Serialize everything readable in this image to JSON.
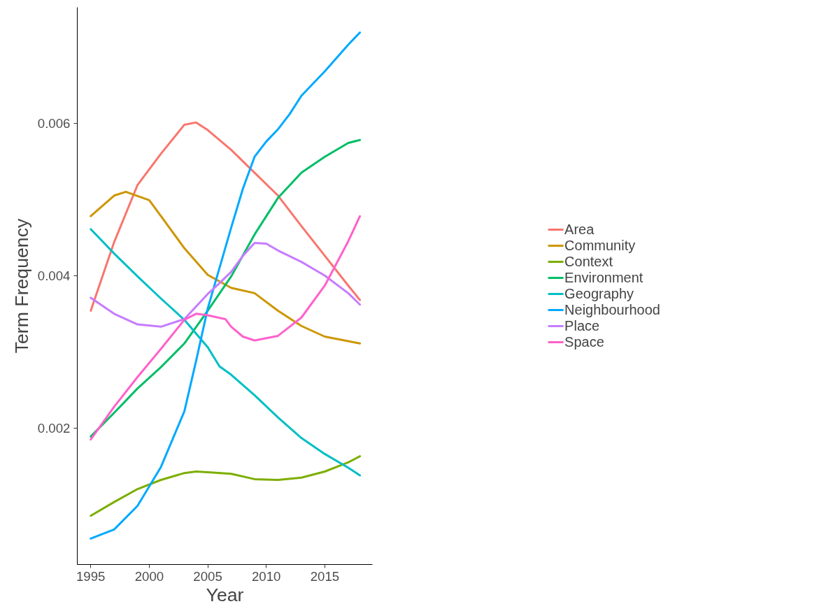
{
  "chart_data": {
    "type": "line",
    "xlabel": "Year",
    "ylabel": "Term Frequency",
    "xlim": [
      1993.85,
      2019.07
    ],
    "ylim": [
      0.00021,
      0.00752
    ],
    "xticks": [
      1995,
      2000,
      2005,
      2010,
      2015
    ],
    "yticks": [
      0.002,
      0.004,
      0.006
    ],
    "grid": false,
    "legend": "right",
    "marker": "none",
    "line_style": "solid",
    "series": [
      {
        "name": "Area",
        "color": "#f8766d",
        "x": [
          1995,
          1997,
          1999,
          2001,
          2003,
          2004,
          2005,
          2007,
          2009,
          2011,
          2013,
          2015,
          2017,
          2018
        ],
        "values": [
          0.00354,
          0.00444,
          0.00519,
          0.0056,
          0.00598,
          0.00601,
          0.00591,
          0.00565,
          0.00535,
          0.00505,
          0.00465,
          0.00426,
          0.00387,
          0.00368
        ]
      },
      {
        "name": "Community",
        "color": "#cd9600",
        "x": [
          1995,
          1997,
          1998,
          2000,
          2001,
          2003,
          2005,
          2007,
          2009,
          2011,
          2013,
          2015,
          2017,
          2018
        ],
        "values": [
          0.00478,
          0.00505,
          0.0051,
          0.00499,
          0.00478,
          0.00436,
          0.00401,
          0.00384,
          0.00377,
          0.00354,
          0.00334,
          0.0032,
          0.00314,
          0.00311
        ]
      },
      {
        "name": "Context",
        "color": "#7cae00",
        "x": [
          1995,
          1997,
          1999,
          2001,
          2003,
          2004,
          2005,
          2007,
          2009,
          2011,
          2013,
          2015,
          2017,
          2018
        ],
        "values": [
          0.00085,
          0.00103,
          0.0012,
          0.00132,
          0.00141,
          0.00143,
          0.00142,
          0.0014,
          0.00133,
          0.00132,
          0.00135,
          0.00143,
          0.00155,
          0.00163
        ]
      },
      {
        "name": "Environment",
        "color": "#00be67",
        "x": [
          1995,
          1997,
          1999,
          2001,
          2003,
          2005,
          2007,
          2009,
          2011,
          2013,
          2015,
          2017,
          2018
        ],
        "values": [
          0.00189,
          0.0022,
          0.00252,
          0.0028,
          0.00311,
          0.00354,
          0.00399,
          0.00454,
          0.00502,
          0.00535,
          0.00556,
          0.00574,
          0.00578
        ]
      },
      {
        "name": "Geography",
        "color": "#00bfc4",
        "x": [
          1995,
          1997,
          1999,
          2001,
          2003,
          2005,
          2006,
          2007,
          2009,
          2011,
          2013,
          2015,
          2017,
          2018
        ],
        "values": [
          0.00461,
          0.00429,
          0.00399,
          0.0037,
          0.00342,
          0.00306,
          0.00281,
          0.0027,
          0.00243,
          0.00214,
          0.00187,
          0.00166,
          0.00148,
          0.00138
        ]
      },
      {
        "name": "Neighbourhood",
        "color": "#00a9ff",
        "x": [
          1995,
          1997,
          1999,
          2001,
          2003,
          2004,
          2005,
          2007,
          2008,
          2009,
          2010,
          2011,
          2012,
          2013,
          2015,
          2017,
          2018
        ],
        "values": [
          0.00055,
          0.00067,
          0.00098,
          0.00149,
          0.00222,
          0.00288,
          0.00357,
          0.00463,
          0.00514,
          0.00556,
          0.00576,
          0.00592,
          0.00612,
          0.00636,
          0.00668,
          0.00703,
          0.00719
        ]
      },
      {
        "name": "Place",
        "color": "#c77cff",
        "x": [
          1995,
          1997,
          1999,
          2001,
          2003,
          2005,
          2006,
          2007,
          2008,
          2009,
          2010,
          2011,
          2013,
          2015,
          2017,
          2018
        ],
        "values": [
          0.00371,
          0.0035,
          0.00336,
          0.00333,
          0.00343,
          0.00376,
          0.0039,
          0.00405,
          0.00426,
          0.00443,
          0.00442,
          0.00433,
          0.00418,
          0.004,
          0.00377,
          0.00362
        ]
      },
      {
        "name": "Space",
        "color": "#ff61cc",
        "x": [
          1995,
          1997,
          1999,
          2001,
          2003,
          2004,
          2005,
          2006.5,
          2007,
          2008,
          2009,
          2011,
          2013,
          2015,
          2017,
          2018
        ],
        "values": [
          0.00185,
          0.00228,
          0.00267,
          0.00304,
          0.00342,
          0.0035,
          0.00348,
          0.00343,
          0.00333,
          0.0032,
          0.00315,
          0.00321,
          0.00345,
          0.00387,
          0.00445,
          0.00478
        ]
      }
    ]
  }
}
